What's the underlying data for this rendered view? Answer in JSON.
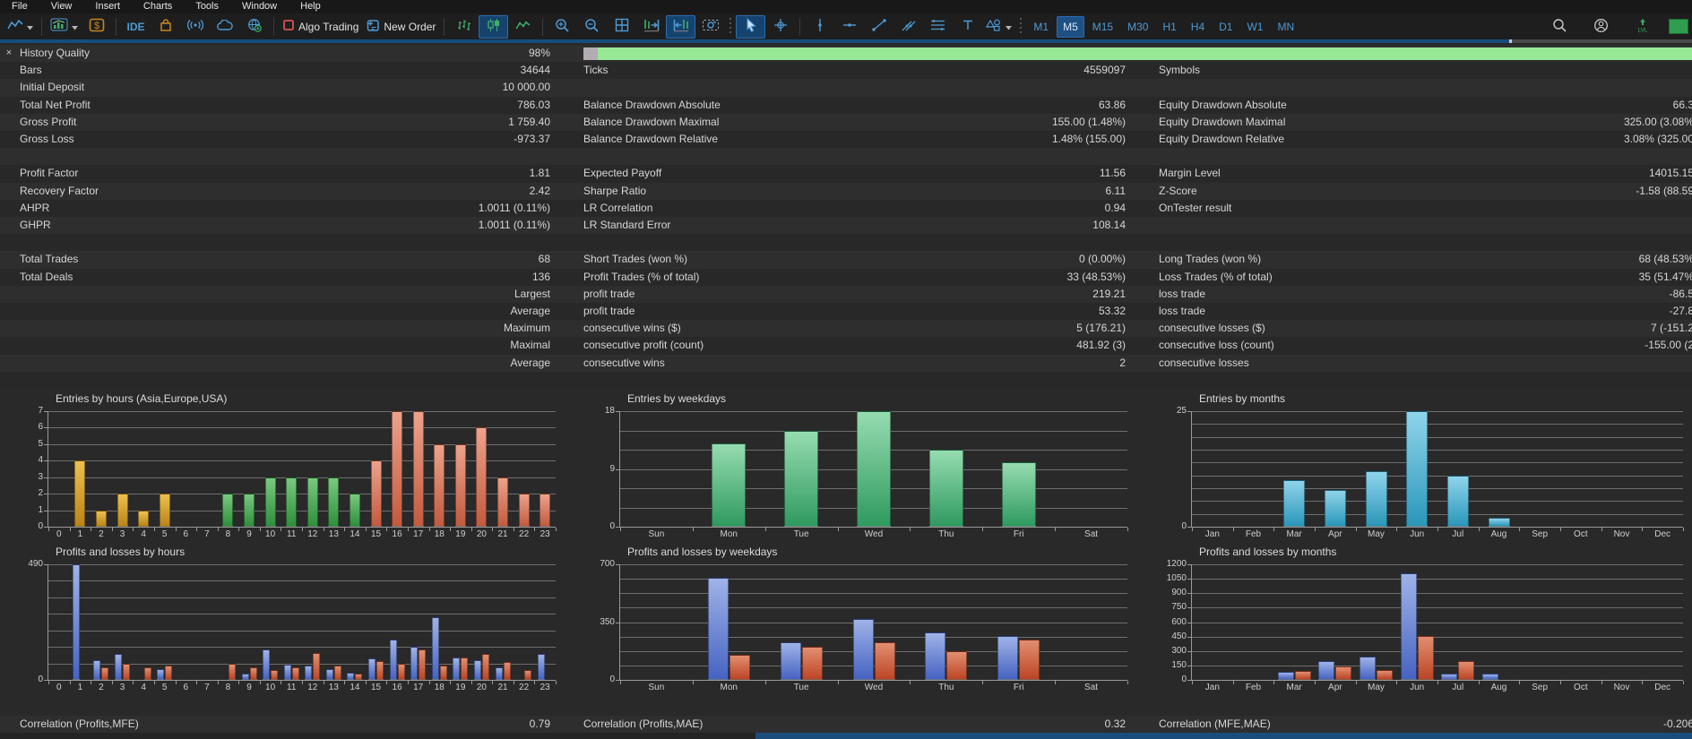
{
  "menu": {
    "items": [
      "File",
      "View",
      "Insert",
      "Charts",
      "Tools",
      "Window",
      "Help"
    ]
  },
  "toolbar": {
    "items": [
      {
        "type": "button",
        "name": "chart-profiles",
        "icon": "line-chart",
        "caret": true
      },
      {
        "type": "sep"
      },
      {
        "type": "button",
        "name": "chart-window",
        "icon": "stats-chart",
        "caret": true
      },
      {
        "type": "button",
        "name": "deposit",
        "icon": "dollar"
      },
      {
        "type": "sep"
      },
      {
        "type": "button",
        "name": "metaeditor-ide",
        "label": "IDE"
      },
      {
        "type": "button",
        "name": "market",
        "icon": "market"
      },
      {
        "type": "button",
        "name": "signals",
        "icon": "signal"
      },
      {
        "type": "button",
        "name": "vps-cloud",
        "icon": "cloud"
      },
      {
        "type": "button",
        "name": "community",
        "icon": "community"
      },
      {
        "type": "sep"
      },
      {
        "type": "button",
        "name": "algo-trading",
        "icon": "algo-square",
        "label": "Algo Trading"
      },
      {
        "type": "button",
        "name": "new-order",
        "icon": "new-order",
        "label": "New Order"
      },
      {
        "type": "sep"
      },
      {
        "type": "button",
        "name": "bars-mode",
        "icon": "bars-type"
      },
      {
        "type": "button",
        "name": "candles-mode",
        "icon": "candles-type",
        "active": true
      },
      {
        "type": "button",
        "name": "line-mode",
        "icon": "line-type"
      },
      {
        "type": "sep"
      },
      {
        "type": "button",
        "name": "zoom-in",
        "icon": "zoom-in"
      },
      {
        "type": "button",
        "name": "zoom-out",
        "icon": "zoom-out"
      },
      {
        "type": "button",
        "name": "tile-windows",
        "icon": "tile"
      },
      {
        "type": "button",
        "name": "shift-chart-end",
        "icon": "shift-end"
      },
      {
        "type": "button",
        "name": "auto-scroll",
        "icon": "auto-scroll",
        "active": true
      },
      {
        "type": "button",
        "name": "screenshot",
        "icon": "camera"
      },
      {
        "type": "dotsep"
      },
      {
        "type": "button",
        "name": "cursor-tool",
        "icon": "cursor",
        "active": true
      },
      {
        "type": "button",
        "name": "crosshair-tool",
        "icon": "crosshair"
      },
      {
        "type": "sep"
      },
      {
        "type": "button",
        "name": "vertical-line-tool",
        "icon": "vline"
      },
      {
        "type": "button",
        "name": "horizontal-line-tool",
        "icon": "hline"
      },
      {
        "type": "button",
        "name": "trendline-tool",
        "icon": "trendline"
      },
      {
        "type": "button",
        "name": "channel-tool",
        "icon": "channel"
      },
      {
        "type": "button",
        "name": "fibo-tool",
        "icon": "fibo"
      },
      {
        "type": "button",
        "name": "text-tool",
        "icon": "text"
      },
      {
        "type": "button",
        "name": "shapes-tool",
        "icon": "shapes",
        "caret": true
      },
      {
        "type": "dotsep"
      },
      {
        "type": "tf",
        "name": "timeframe-m1",
        "label": "M1"
      },
      {
        "type": "tf",
        "name": "timeframe-m5",
        "label": "M5",
        "active": true
      },
      {
        "type": "tf",
        "name": "timeframe-m15",
        "label": "M15"
      },
      {
        "type": "tf",
        "name": "timeframe-m30",
        "label": "M30"
      },
      {
        "type": "tf",
        "name": "timeframe-h1",
        "label": "H1"
      },
      {
        "type": "tf",
        "name": "timeframe-h4",
        "label": "H4"
      },
      {
        "type": "tf",
        "name": "timeframe-d1",
        "label": "D1"
      },
      {
        "type": "tf",
        "name": "timeframe-w1",
        "label": "W1"
      },
      {
        "type": "tf",
        "name": "timeframe-mn",
        "label": "MN"
      }
    ],
    "right_items": [
      {
        "name": "search",
        "icon": "search"
      },
      {
        "name": "account",
        "icon": "account"
      },
      {
        "name": "levels",
        "icon": "levels"
      }
    ]
  },
  "table": {
    "close_glyph": "×",
    "rows": [
      {
        "c1l": "History Quality",
        "c1v": "98%",
        "progress": true
      },
      {
        "c1l": "Bars",
        "c1v": "34644",
        "c2l": "Ticks",
        "c2v": "4559097",
        "c3l": "Symbols",
        "c3v": ""
      },
      {
        "c1l": "Initial Deposit",
        "c1v": "10 000.00",
        "c2l": "",
        "c2v": "",
        "c3l": "",
        "c3v": ""
      },
      {
        "c1l": "Total Net Profit",
        "c1v": "786.03",
        "c2l": "Balance Drawdown Absolute",
        "c2v": "63.86",
        "c3l": "Equity Drawdown Absolute",
        "c3v": "66.3"
      },
      {
        "c1l": "Gross Profit",
        "c1v": "1 759.40",
        "c2l": "Balance Drawdown Maximal",
        "c2v": "155.00 (1.48%)",
        "c3l": "Equity Drawdown Maximal",
        "c3v": "325.00 (3.08%"
      },
      {
        "c1l": "Gross Loss",
        "c1v": "-973.37",
        "c2l": "Balance Drawdown Relative",
        "c2v": "1.48% (155.00)",
        "c3l": "Equity Drawdown Relative",
        "c3v": "3.08% (325.00"
      },
      {
        "c1l": "",
        "c1v": "",
        "c2l": "",
        "c2v": "",
        "c3l": "",
        "c3v": ""
      },
      {
        "c1l": "Profit Factor",
        "c1v": "1.81",
        "c2l": "Expected Payoff",
        "c2v": "11.56",
        "c3l": "Margin Level",
        "c3v": "14015.15"
      },
      {
        "c1l": "Recovery Factor",
        "c1v": "2.42",
        "c2l": "Sharpe Ratio",
        "c2v": "6.11",
        "c3l": "Z-Score",
        "c3v": "-1.58 (88.59"
      },
      {
        "c1l": "AHPR",
        "c1v": "1.0011 (0.11%)",
        "c2l": "LR Correlation",
        "c2v": "0.94",
        "c3l": "OnTester result",
        "c3v": ""
      },
      {
        "c1l": "GHPR",
        "c1v": "1.0011 (0.11%)",
        "c2l": "LR Standard Error",
        "c2v": "108.14",
        "c3l": "",
        "c3v": ""
      },
      {
        "c1l": "",
        "c1v": "",
        "c2l": "",
        "c2v": "",
        "c3l": "",
        "c3v": ""
      },
      {
        "c1l": "Total Trades",
        "c1v": "68",
        "c2l": "Short Trades (won %)",
        "c2v": "0 (0.00%)",
        "c3l": "Long Trades (won %)",
        "c3v": "68 (48.53%"
      },
      {
        "c1l": "Total Deals",
        "c1v": "136",
        "c2l": "Profit Trades (% of total)",
        "c2v": "33 (48.53%)",
        "c3l": "Loss Trades (% of total)",
        "c3v": "35 (51.47%"
      },
      {
        "c1l": "",
        "c1v": "Largest",
        "c2l": "profit trade",
        "c2v": "219.21",
        "c3l": "loss trade",
        "c3v": "-86.5"
      },
      {
        "c1l": "",
        "c1v": "Average",
        "c2l": "profit trade",
        "c2v": "53.32",
        "c3l": "loss trade",
        "c3v": "-27.8"
      },
      {
        "c1l": "",
        "c1v": "Maximum",
        "c2l": "consecutive wins ($)",
        "c2v": "5 (176.21)",
        "c3l": "consecutive losses ($)",
        "c3v": "7 (-151.2"
      },
      {
        "c1l": "",
        "c1v": "Maximal",
        "c2l": "consecutive profit (count)",
        "c2v": "481.92 (3)",
        "c3l": "consecutive loss (count)",
        "c3v": "-155.00 (2"
      },
      {
        "c1l": "",
        "c1v": "Average",
        "c2l": "consecutive wins",
        "c2v": "2",
        "c3l": "consecutive losses",
        "c3v": ""
      }
    ],
    "footer": {
      "c1l": "Correlation (Profits,MFE)",
      "c1v": "0.79",
      "c2l": "Correlation (Profits,MAE)",
      "c2v": "0.32",
      "c3l": "Correlation (MFE,MAE)",
      "c3v": "-0.206"
    }
  },
  "theme": {
    "accent_blue": "#4e9ad4",
    "icon_green": "#3fae68",
    "icon_orange": "#c8861e",
    "algo_red": "#d65454",
    "divider_blue": "#164d7d",
    "progress_lead": "#b3adb3",
    "progress_fill": "#98e896",
    "row_light": "#2e2e2e",
    "row_dark": "#282828",
    "palette": {
      "asia": [
        "#ecc04f",
        "#bb8418"
      ],
      "europe": [
        "#79c97f",
        "#2f8f3c"
      ],
      "usa": [
        "#eda28c",
        "#c25a3e"
      ],
      "weekday": [
        "#96dcb0",
        "#2f9a5f"
      ],
      "month": [
        "#8fd4ea",
        "#2a97ba"
      ],
      "profit": [
        "#9fb3e8",
        "#4663c2"
      ],
      "loss": [
        "#e28f70",
        "#bc4526"
      ]
    }
  },
  "chart_data": [
    {
      "type": "bar",
      "title": "Entries by hours (Asia,Europe,USA)",
      "categories": [
        "0",
        "1",
        "2",
        "3",
        "4",
        "5",
        "6",
        "7",
        "8",
        "9",
        "10",
        "11",
        "12",
        "13",
        "14",
        "15",
        "16",
        "17",
        "18",
        "19",
        "20",
        "21",
        "22",
        "23"
      ],
      "values": [
        0,
        4,
        1,
        2,
        1,
        2,
        0,
        0,
        2,
        2,
        3,
        3,
        3,
        3,
        2,
        4,
        7,
        7,
        5,
        5,
        6,
        3,
        2,
        2
      ],
      "bar_colors": [
        "asia",
        "asia",
        "asia",
        "asia",
        "asia",
        "asia",
        "asia",
        "asia",
        "europe",
        "europe",
        "europe",
        "europe",
        "europe",
        "europe",
        "europe",
        "usa",
        "usa",
        "usa",
        "usa",
        "usa",
        "usa",
        "usa",
        "usa",
        "usa"
      ],
      "ylim": [
        0,
        7
      ],
      "yticks": [
        0,
        1,
        2,
        3,
        4,
        5,
        6,
        7
      ],
      "gridlines": [
        1,
        2,
        3,
        4,
        5,
        6,
        7
      ],
      "xlabel": "",
      "ylabel": "",
      "legend": "none",
      "grid": "on"
    },
    {
      "type": "bar",
      "title": "Entries by weekdays",
      "categories": [
        "Sun",
        "Mon",
        "Tue",
        "Wed",
        "Thu",
        "Fri",
        "Sat"
      ],
      "values": [
        0,
        13,
        15,
        18,
        12,
        10,
        0
      ],
      "color": "weekday",
      "ylim": [
        0,
        18
      ],
      "yticks": [
        0,
        9,
        18
      ],
      "gridlines": [
        3,
        6,
        9,
        12,
        15,
        18
      ],
      "xlabel": "",
      "ylabel": "",
      "legend": "none",
      "grid": "on"
    },
    {
      "type": "bar",
      "title": "Entries by months",
      "categories": [
        "Jan",
        "Feb",
        "Mar",
        "Apr",
        "May",
        "Jun",
        "Jul",
        "Aug",
        "Sep",
        "Oct",
        "Nov",
        "Dec"
      ],
      "values": [
        0,
        0,
        10,
        8,
        12,
        25,
        11,
        2,
        0,
        0,
        0,
        0
      ],
      "color": "month",
      "ylim": [
        0,
        25
      ],
      "yticks": [
        0,
        25
      ],
      "gridlines": [
        2.8,
        5.6,
        8.3,
        11.1,
        13.9,
        16.7,
        19.4,
        22.2,
        25
      ],
      "xlabel": "",
      "ylabel": "",
      "legend": "none",
      "grid": "on"
    },
    {
      "type": "grouped-bar",
      "title": "Profits and losses by hours",
      "categories": [
        "0",
        "1",
        "2",
        "3",
        "4",
        "5",
        "6",
        "7",
        "8",
        "9",
        "10",
        "11",
        "12",
        "13",
        "14",
        "15",
        "16",
        "17",
        "18",
        "19",
        "20",
        "21",
        "22",
        "23"
      ],
      "series": [
        {
          "name": "profits",
          "color": "profit",
          "values": [
            0,
            490,
            85,
            110,
            0,
            45,
            0,
            0,
            0,
            25,
            130,
            65,
            60,
            45,
            30,
            90,
            170,
            140,
            265,
            95,
            85,
            55,
            0,
            110
          ]
        },
        {
          "name": "losses",
          "color": "loss",
          "values": [
            0,
            0,
            55,
            70,
            55,
            60,
            0,
            0,
            70,
            55,
            40,
            55,
            115,
            60,
            25,
            80,
            70,
            130,
            60,
            95,
            110,
            75,
            40,
            0
          ]
        }
      ],
      "ylim": [
        0,
        490
      ],
      "yticks": [
        0,
        490
      ],
      "gridlines": [
        70,
        140,
        210,
        280,
        350,
        420,
        490
      ],
      "xlabel": "",
      "ylabel": "",
      "legend": "none",
      "grid": "on"
    },
    {
      "type": "grouped-bar",
      "title": "Profits and losses by weekdays",
      "categories": [
        "Sun",
        "Mon",
        "Tue",
        "Wed",
        "Thu",
        "Fri",
        "Sat"
      ],
      "series": [
        {
          "name": "profits",
          "color": "profit",
          "values": [
            0,
            620,
            230,
            370,
            290,
            265,
            0
          ]
        },
        {
          "name": "losses",
          "color": "loss",
          "values": [
            0,
            150,
            200,
            230,
            175,
            245,
            0
          ]
        }
      ],
      "ylim": [
        0,
        700
      ],
      "yticks": [
        0,
        350,
        700
      ],
      "gridlines": [
        87.5,
        175,
        262.5,
        350,
        437.5,
        525,
        612.5,
        700
      ],
      "xlabel": "",
      "ylabel": "",
      "legend": "none",
      "grid": "on"
    },
    {
      "type": "grouped-bar",
      "title": "Profits and losses by months",
      "categories": [
        "Jan",
        "Feb",
        "Mar",
        "Apr",
        "May",
        "Jun",
        "Jul",
        "Aug",
        "Sep",
        "Oct",
        "Nov",
        "Dec"
      ],
      "series": [
        {
          "name": "profits",
          "color": "profit",
          "values": [
            0,
            0,
            85,
            195,
            245,
            1110,
            65,
            65,
            0,
            0,
            0,
            0
          ]
        },
        {
          "name": "losses",
          "color": "loss",
          "values": [
            0,
            0,
            95,
            135,
            105,
            455,
            195,
            0,
            0,
            0,
            0,
            0
          ]
        }
      ],
      "ylim": [
        0,
        1200
      ],
      "yticks": [
        0,
        150,
        300,
        450,
        600,
        750,
        900,
        1050,
        1200
      ],
      "gridlines": [
        150,
        300,
        450,
        600,
        750,
        900,
        1050,
        1200
      ],
      "xlabel": "",
      "ylabel": "",
      "legend": "none",
      "grid": "on"
    }
  ]
}
